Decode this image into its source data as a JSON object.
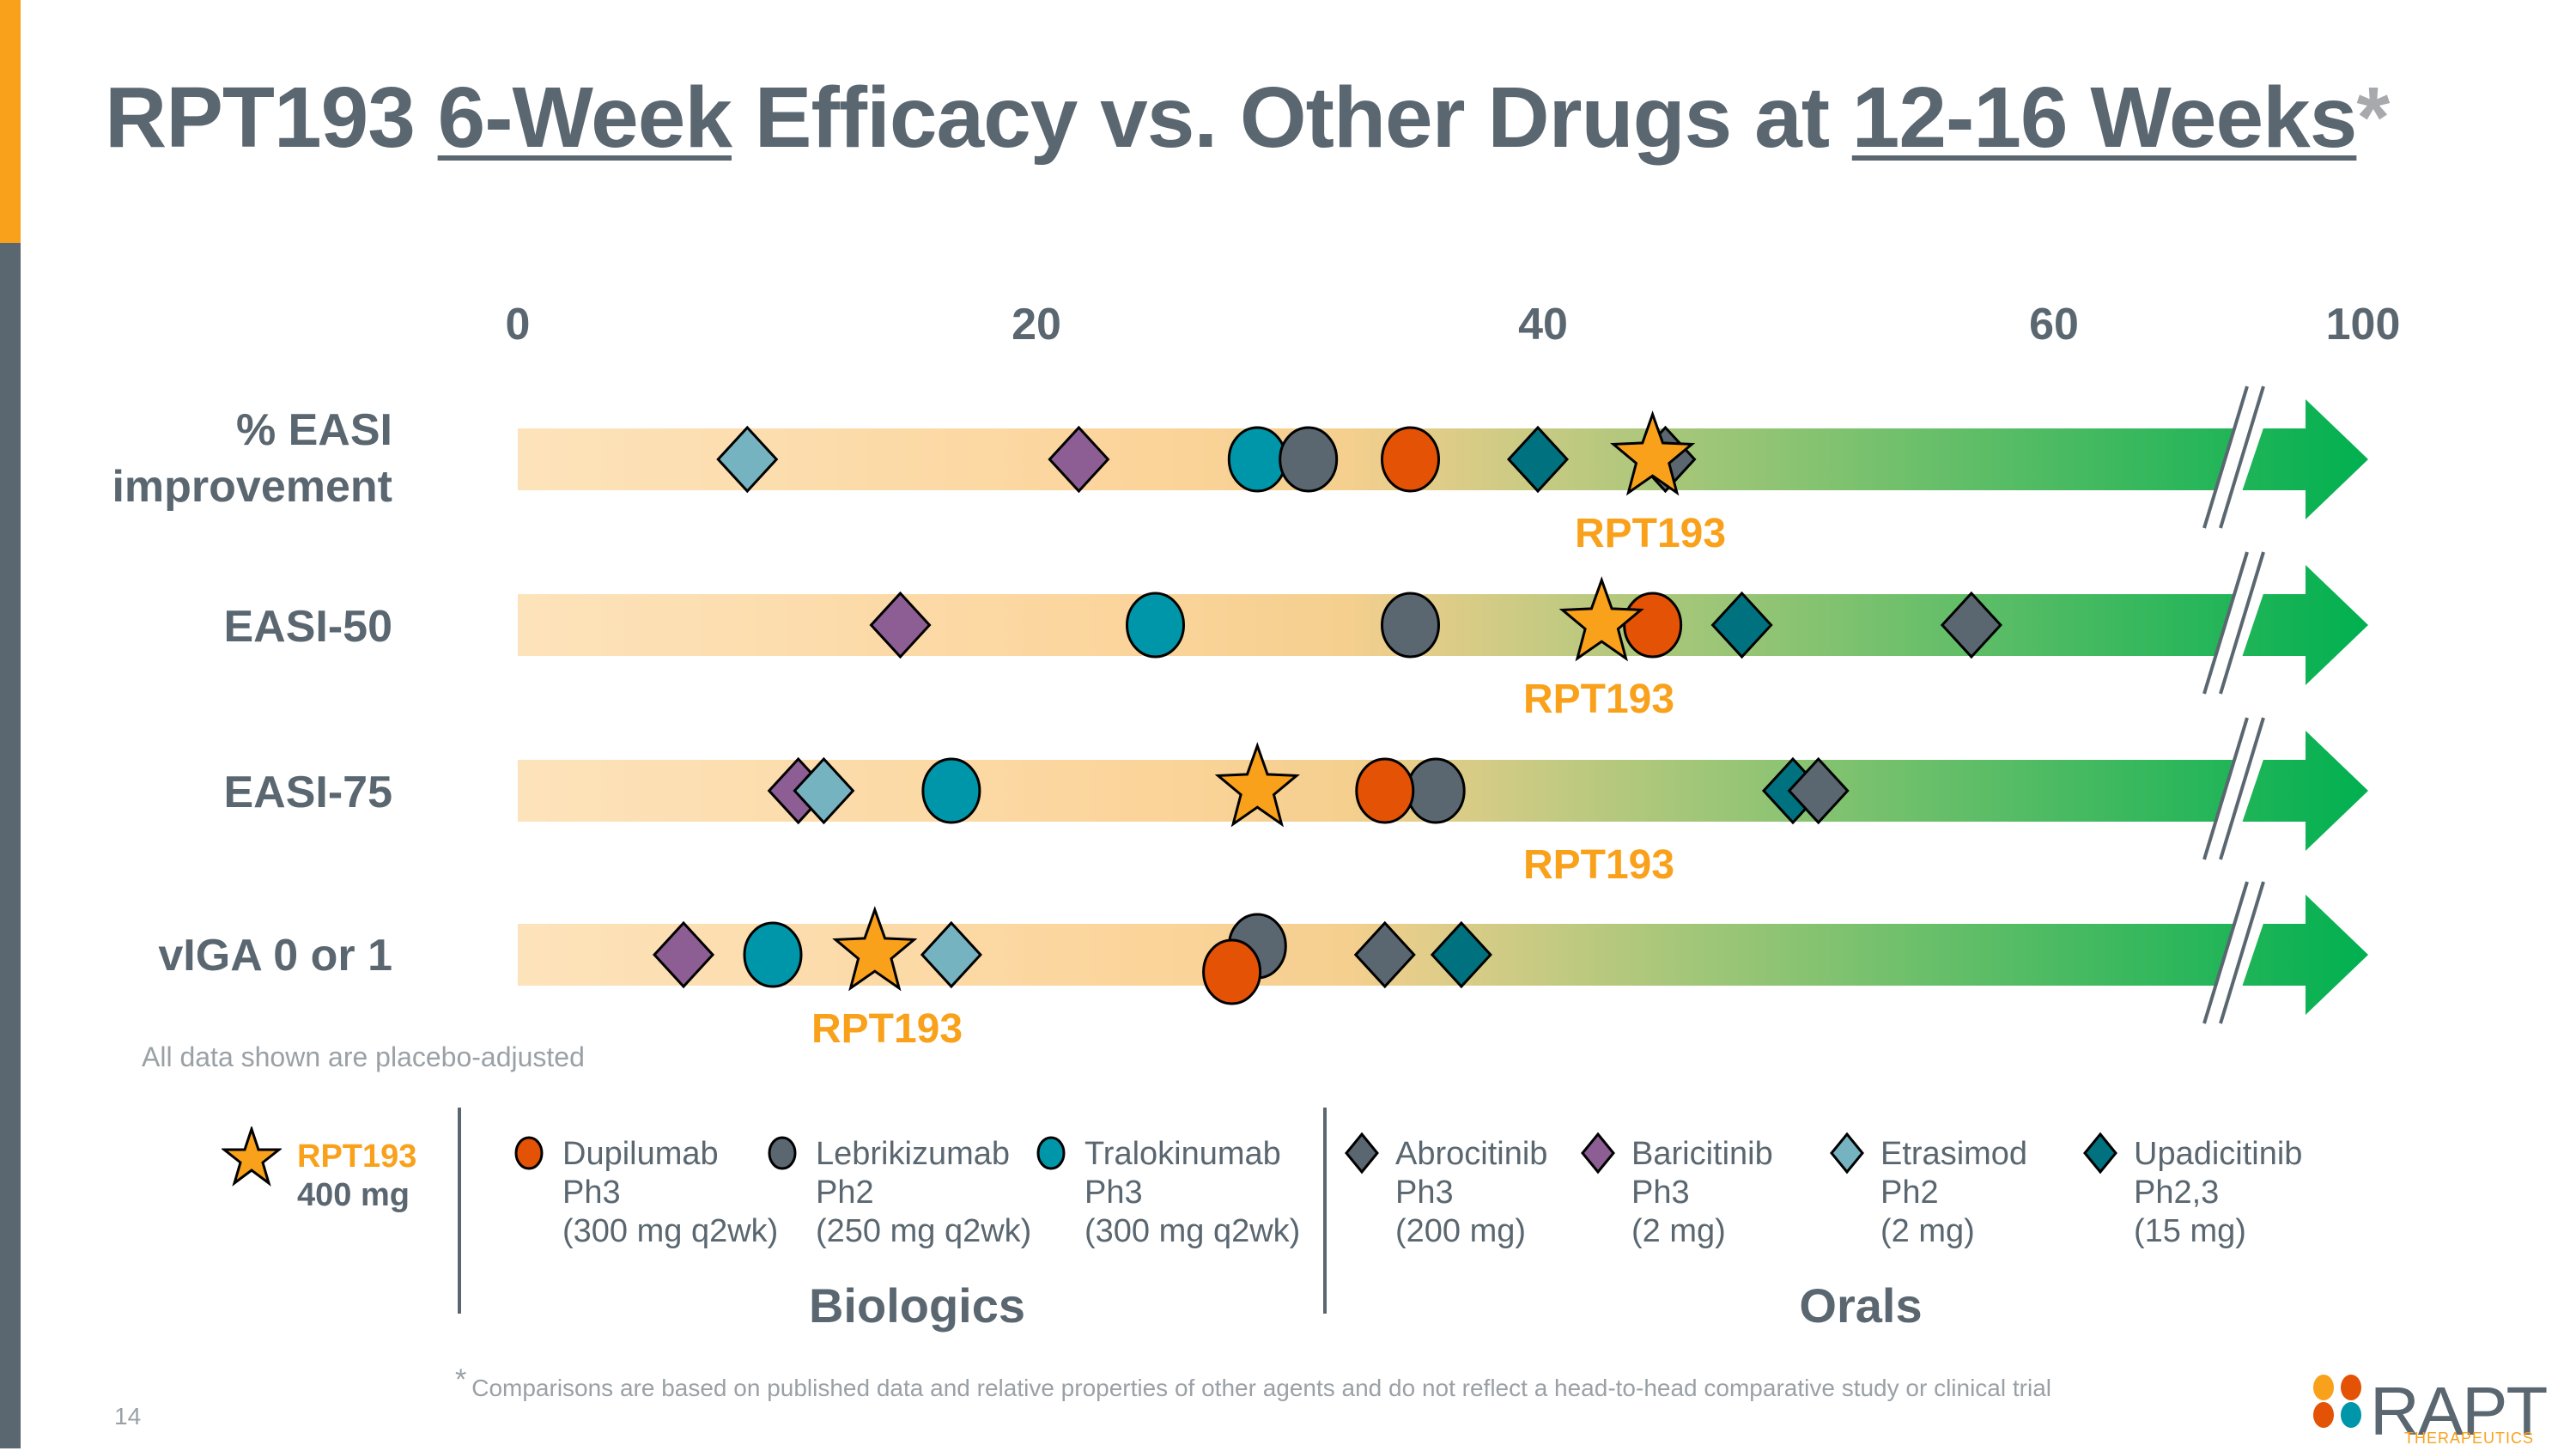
{
  "page": {
    "title_parts": [
      "RPT193 ",
      "6-Week",
      " Efficacy vs. Other Drugs at ",
      "12-16 Weeks",
      "*"
    ],
    "note": "All data shown are placebo-adjusted",
    "footnote_marker": "*",
    "footnote": "Comparisons are based on published data and relative properties of other agents and do not reflect a head-to-head comparative study or clinical trial",
    "page_number": "14",
    "logo_text": "RAPT",
    "logo_subtext": "THERAPEUTICS"
  },
  "legend": {
    "rpt": {
      "name": "RPT193",
      "dose": "400 mg"
    },
    "biologics_label": "Biologics",
    "orals_label": "Orals",
    "items": [
      {
        "drug": "Dupilumab",
        "phase": "Ph3",
        "dose": "(300 mg q2wk)",
        "shape": "circle",
        "color": "#e35205",
        "group": "Biologics"
      },
      {
        "drug": "Lebrikizumab",
        "phase": "Ph2",
        "dose": "(250 mg q2wk)",
        "shape": "circle",
        "color": "#5a6770",
        "group": "Biologics"
      },
      {
        "drug": "Tralokinumab",
        "phase": "Ph3",
        "dose": "(300 mg q2wk)",
        "shape": "circle",
        "color": "#0096a9",
        "group": "Biologics"
      },
      {
        "drug": "Abrocitinib",
        "phase": "Ph3",
        "dose": "(200 mg)",
        "shape": "diamond",
        "color": "#5a6770",
        "group": "Orals"
      },
      {
        "drug": "Baricitinib",
        "phase": "Ph3",
        "dose": "(2 mg)",
        "shape": "diamond",
        "color": "#8c5e94",
        "group": "Orals"
      },
      {
        "drug": "Etrasimod",
        "phase": "Ph2",
        "dose": "(2 mg)",
        "shape": "diamond",
        "color": "#76b3c0",
        "group": "Orals"
      },
      {
        "drug": "Upadicitinib",
        "phase": "Ph2,3",
        "dose": "(15 mg)",
        "shape": "diamond",
        "color": "#00717f",
        "group": "Orals"
      }
    ]
  },
  "chart_data": {
    "type": "scatter",
    "title": "RPT193 6-Week Efficacy vs. Other Drugs at 12-16 Weeks*",
    "xlabel": "",
    "ylabel": "",
    "x_ticks": [
      "0",
      "20",
      "40",
      "60",
      "100"
    ],
    "x_tick_values": [
      0,
      20,
      40,
      60,
      100
    ],
    "axis_break": "between 60 and 100",
    "xlim": [
      0,
      100
    ],
    "categories": [
      "% EASI improvement",
      "EASI-50",
      "EASI-75",
      "vIGA 0 or 1"
    ],
    "rpt_label": "RPT193",
    "rpt_color": "#f9a11b",
    "series": [
      {
        "name": "RPT193",
        "shape": "star",
        "color": "#f9a11b",
        "values": [
          44.5,
          42.5,
          29,
          14
        ]
      },
      {
        "name": "Dupilumab",
        "shape": "circle",
        "color": "#e35205",
        "values": [
          35,
          44.5,
          34,
          28
        ]
      },
      {
        "name": "Lebrikizumab",
        "shape": "circle",
        "color": "#5a6770",
        "values": [
          31,
          35,
          36,
          29
        ]
      },
      {
        "name": "Tralokinumab",
        "shape": "circle",
        "color": "#0096a9",
        "values": [
          29,
          25,
          17,
          10
        ]
      },
      {
        "name": "Abrocitinib",
        "shape": "diamond",
        "color": "#5a6770",
        "values": [
          45,
          57,
          51,
          34
        ]
      },
      {
        "name": "Baricitinib",
        "shape": "diamond",
        "color": "#8c5e94",
        "values": [
          22,
          15,
          11,
          6.5
        ]
      },
      {
        "name": "Etrasimod",
        "shape": "diamond",
        "color": "#76b3c0",
        "values": [
          9,
          null,
          12,
          17
        ]
      },
      {
        "name": "Upadicitinib",
        "shape": "diamond",
        "color": "#00717f",
        "values": [
          40,
          48,
          50,
          37
        ]
      }
    ],
    "gradient_colors": [
      "#fde3bb",
      "#fbd49a",
      "#f4cf8e",
      "#8ec473",
      "#00b050"
    ]
  }
}
